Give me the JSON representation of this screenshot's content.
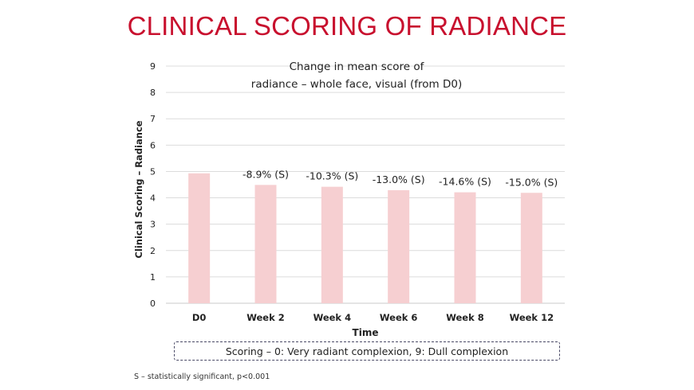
{
  "page_title": "CLINICAL SCORING OF RADIANCE",
  "footnote": "S – statistically significant, p<0.001",
  "scoring_note": "Scoring – 0: Very radiant complexion, 9: Dull complexion",
  "colors": {
    "title": "#c8102e",
    "bar": "#f6cfd1",
    "grid": "#dcdcdc"
  },
  "chart_data": {
    "type": "bar",
    "title_lines": [
      "Change in mean score of",
      "radiance – whole face, visual (from D0)"
    ],
    "xlabel": "Time",
    "ylabel": "Clinical Scoring – Radiance",
    "ylim": [
      0,
      9
    ],
    "yticks": [
      0,
      1,
      2,
      3,
      4,
      5,
      6,
      7,
      8,
      9
    ],
    "grid": true,
    "categories": [
      "D0",
      "Week 2",
      "Week 4",
      "Week 6",
      "Week 8",
      "Week 12"
    ],
    "values": [
      4.93,
      4.49,
      4.42,
      4.29,
      4.21,
      4.19
    ],
    "data_labels": [
      "",
      "-8.9% (S)",
      "-10.3% (S)",
      "-13.0% (S)",
      "-14.6% (S)",
      "-15.0% (S)"
    ]
  }
}
